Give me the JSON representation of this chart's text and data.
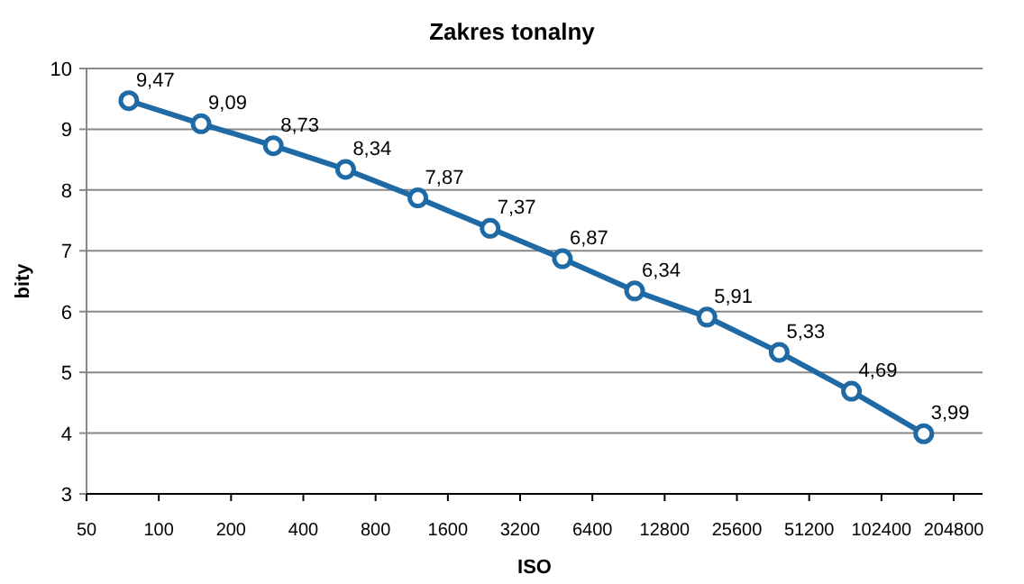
{
  "chart_data": {
    "type": "line",
    "title": "Zakres tonalny",
    "xlabel": "ISO",
    "ylabel": "bity",
    "x": [
      75,
      150,
      300,
      600,
      1200,
      2400,
      4800,
      9600,
      19200,
      38400,
      76800,
      153600
    ],
    "series": [
      {
        "color": "#1f6aa5",
        "values": [
          9.47,
          9.09,
          8.73,
          8.34,
          7.87,
          7.37,
          6.87,
          6.34,
          5.91,
          5.33,
          4.69,
          3.99
        ],
        "value_labels": [
          "9,47",
          "9,09",
          "8,73",
          "8,34",
          "7,87",
          "7,37",
          "6,87",
          "6,34",
          "5,91",
          "5,33",
          "4,69",
          "3,99"
        ]
      }
    ],
    "log": "x",
    "xlim": [
      50,
      270000
    ],
    "xticks": [
      50,
      100,
      200,
      400,
      800,
      1600,
      3200,
      6400,
      12800,
      25600,
      51200,
      102400,
      204800
    ],
    "ylim": [
      3,
      10
    ],
    "yticks": [
      3,
      4,
      5,
      6,
      7,
      8,
      9,
      10
    ],
    "grid": "y",
    "marker": "circle",
    "line_style": "solid"
  }
}
